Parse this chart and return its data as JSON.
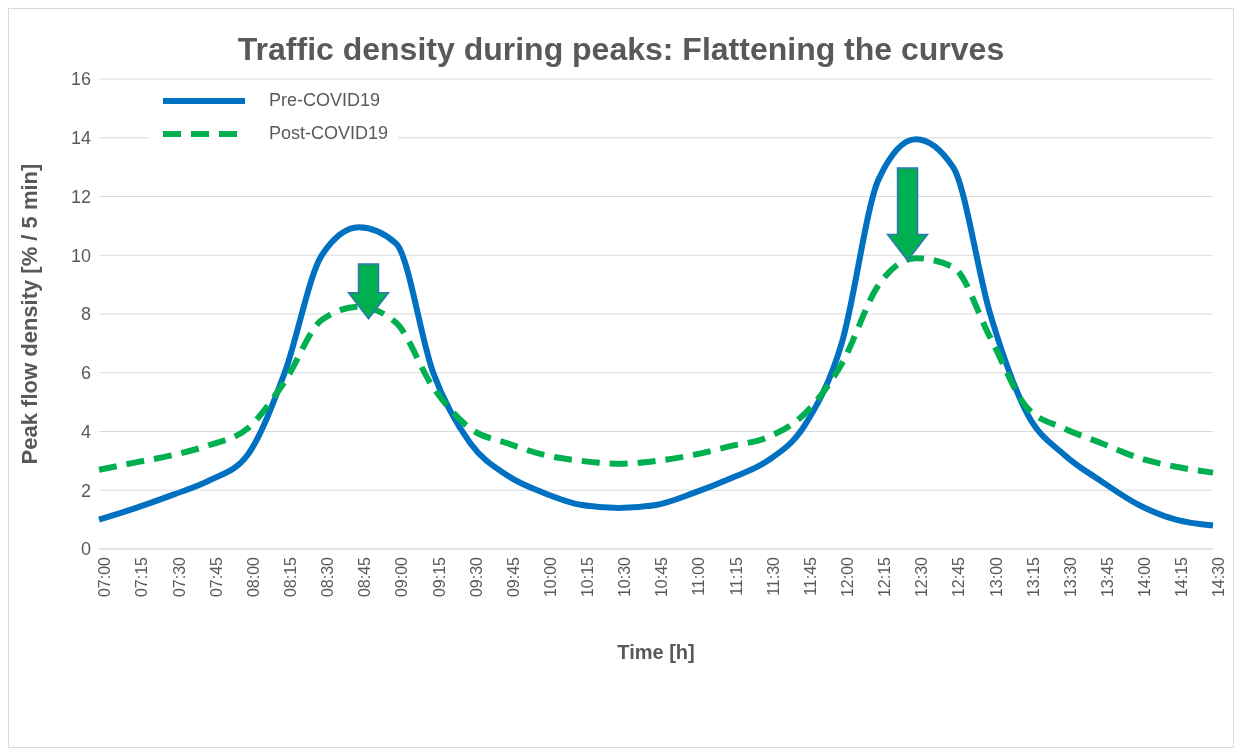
{
  "chart_data": {
    "type": "line",
    "title": "Traffic density during peaks: Flattening the curves",
    "xlabel": "Time [h]",
    "ylabel": "Peak flow density [% / 5 min]",
    "categories": [
      "07:00",
      "07:15",
      "07:30",
      "07:45",
      "08:00",
      "08:15",
      "08:30",
      "08:45",
      "09:00",
      "09:15",
      "09:30",
      "09:45",
      "10:00",
      "10:15",
      "10:30",
      "10:45",
      "11:00",
      "11:15",
      "11:30",
      "11:45",
      "12:00",
      "12:15",
      "12:30",
      "12:45",
      "13:00",
      "13:15",
      "13:30",
      "13:45",
      "14:00",
      "14:15",
      "14:30"
    ],
    "series": [
      {
        "name": "Pre-COVID19",
        "color": "#0070c0",
        "line_style": "solid",
        "values": [
          1.0,
          1.4,
          1.85,
          2.35,
          3.2,
          6.0,
          10.0,
          10.95,
          10.4,
          6.0,
          3.6,
          2.5,
          1.9,
          1.5,
          1.4,
          1.5,
          1.9,
          2.4,
          3.0,
          4.2,
          7.0,
          12.6,
          13.95,
          13.0,
          8.0,
          4.6,
          3.2,
          2.3,
          1.5,
          1.0,
          0.8
        ]
      },
      {
        "name": "Post-COVID19",
        "color": "#00b050",
        "line_style": "dashed",
        "values": [
          2.7,
          2.95,
          3.2,
          3.55,
          4.1,
          5.7,
          7.8,
          8.25,
          7.7,
          5.5,
          4.1,
          3.6,
          3.2,
          3.0,
          2.9,
          3.0,
          3.2,
          3.5,
          3.8,
          4.6,
          6.3,
          9.0,
          9.9,
          9.6,
          7.2,
          4.8,
          4.1,
          3.6,
          3.1,
          2.8,
          2.6
        ]
      }
    ],
    "ylim": [
      0,
      16
    ],
    "yticks": [
      0,
      2,
      4,
      6,
      8,
      10,
      12,
      14,
      16
    ],
    "grid": "y",
    "legend": "top left",
    "marker": "none"
  }
}
